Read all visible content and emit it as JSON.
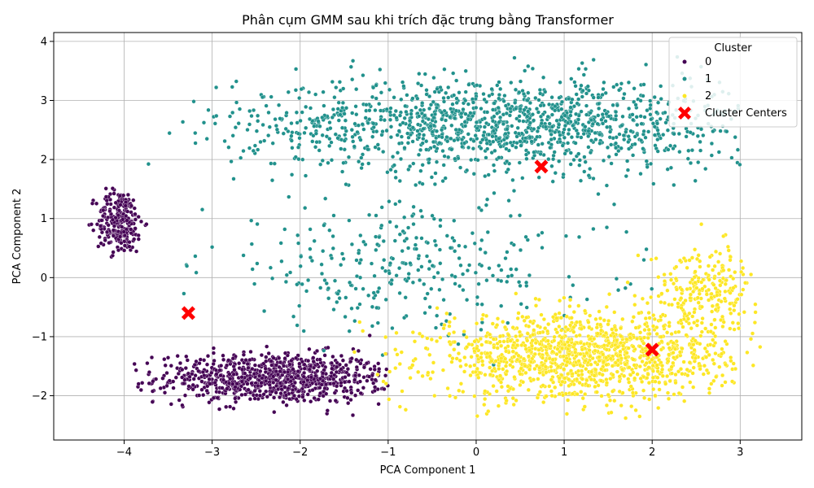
{
  "chart_data": {
    "type": "scatter",
    "title": "Phân cụm GMM sau khi trích đặc trưng bằng Transformer",
    "xlabel": "PCA Component 1",
    "ylabel": "PCA Component 2",
    "xlim": [
      -4.8,
      3.7
    ],
    "ylim": [
      -2.75,
      4.15
    ],
    "x_ticks": [
      -4,
      -3,
      -2,
      -1,
      0,
      1,
      2,
      3
    ],
    "y_ticks": [
      -2,
      -1,
      0,
      1,
      2,
      3,
      4
    ],
    "grid": true,
    "legend": {
      "title": "Cluster",
      "placement": "top-right"
    },
    "series": [
      {
        "name": "0",
        "color": "#440154",
        "regions": [
          {
            "center": [
              -2.3,
              -1.7
            ],
            "spread": [
              1.1,
              0.35
            ],
            "weight": 900,
            "x_range": [
              -3.9,
              -1.0
            ]
          },
          {
            "center": [
              -4.05,
              0.95
            ],
            "spread": [
              0.22,
              0.45
            ],
            "weight": 260,
            "x_range": [
              -4.4,
              -3.55
            ]
          }
        ]
      },
      {
        "name": "1",
        "color": "#21918c",
        "regions": [
          {
            "center": [
              0.3,
              2.6
            ],
            "spread": [
              2.5,
              0.65
            ],
            "weight": 1400,
            "x_range": [
              -4.0,
              3.0
            ]
          },
          {
            "center": [
              -0.8,
              0.2
            ],
            "spread": [
              1.9,
              0.9
            ],
            "weight": 320,
            "x_range": [
              -3.6,
              2.2
            ]
          }
        ]
      },
      {
        "name": "2",
        "color": "#fde725",
        "regions": [
          {
            "center": [
              1.2,
              -1.35
            ],
            "spread": [
              1.4,
              0.6
            ],
            "weight": 1300,
            "x_range": [
              -1.6,
              3.25
            ]
          },
          {
            "center": [
              2.6,
              -0.2
            ],
            "spread": [
              0.5,
              0.6
            ],
            "weight": 240,
            "x_range": [
              1.6,
              3.25
            ]
          }
        ]
      }
    ],
    "centers": {
      "name": "Cluster Centers",
      "color": "#ff0000",
      "marker": "X",
      "points": [
        {
          "x": 0.74,
          "y": 1.88
        },
        {
          "x": -3.27,
          "y": -0.6
        },
        {
          "x": 2.0,
          "y": -1.22
        }
      ]
    }
  }
}
